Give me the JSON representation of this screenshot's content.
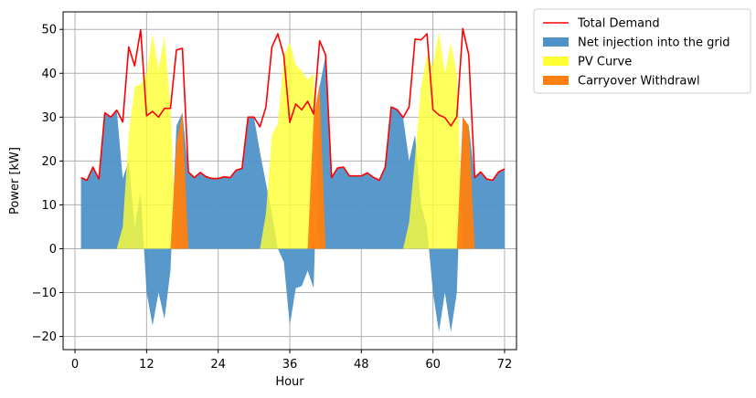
{
  "chart_data": {
    "type": "area",
    "xlabel": "Hour",
    "ylabel": "Power [kW]",
    "xlim": [
      -2,
      74
    ],
    "ylim": [
      -23,
      54
    ],
    "xticks": [
      0,
      12,
      24,
      36,
      48,
      60,
      72
    ],
    "yticks": [
      -20,
      -10,
      0,
      10,
      20,
      30,
      40,
      50
    ],
    "grid": true,
    "legend_position": "outside-top-right",
    "x": [
      1,
      2,
      3,
      4,
      5,
      6,
      7,
      8,
      9,
      10,
      11,
      12,
      13,
      14,
      15,
      16,
      17,
      18,
      19,
      20,
      21,
      22,
      23,
      24,
      25,
      26,
      27,
      28,
      29,
      30,
      31,
      32,
      33,
      34,
      35,
      36,
      37,
      38,
      39,
      40,
      41,
      42,
      43,
      44,
      45,
      46,
      47,
      48,
      49,
      50,
      51,
      52,
      53,
      54,
      55,
      56,
      57,
      58,
      59,
      60,
      61,
      62,
      63,
      64,
      65,
      66,
      67,
      68,
      69,
      70,
      71,
      72
    ],
    "series": [
      {
        "name": "Total Demand",
        "kind": "line",
        "color": "#ff0000",
        "values": [
          16.2,
          15.6,
          18.6,
          15.9,
          31.0,
          30.0,
          31.6,
          28.9,
          46.0,
          41.7,
          49.9,
          30.3,
          31.3,
          30.0,
          32.0,
          32.0,
          45.3,
          45.7,
          17.5,
          16.2,
          17.4,
          16.4,
          16.0,
          16.0,
          16.4,
          16.2,
          17.9,
          18.3,
          30.0,
          30.0,
          27.8,
          32.3,
          46.0,
          49.0,
          44.0,
          28.8,
          33.0,
          31.7,
          33.6,
          30.7,
          47.4,
          44.2,
          16.2,
          18.4,
          18.6,
          16.6,
          16.6,
          16.6,
          17.3,
          16.3,
          15.6,
          18.6,
          32.3,
          31.7,
          29.9,
          32.3,
          47.8,
          47.6,
          49.0,
          31.7,
          30.5,
          29.9,
          28.0,
          30.1,
          50.2,
          44.2,
          16.2,
          17.5,
          15.9,
          15.6,
          17.5,
          18.2
        ]
      },
      {
        "name": "Net injection into the grid",
        "kind": "area",
        "color": "#4f92c8",
        "values": [
          16.2,
          15.6,
          18.6,
          15.9,
          31.0,
          30.0,
          31.6,
          16.0,
          20.0,
          5.0,
          13.0,
          -10.0,
          -17.5,
          -10.0,
          -16.0,
          -5.0,
          28.0,
          31.0,
          17.5,
          16.2,
          17.4,
          16.4,
          16.0,
          16.0,
          16.4,
          16.2,
          17.9,
          18.3,
          30.0,
          30.0,
          22.0,
          15.0,
          8.0,
          0.0,
          -3.0,
          -17.5,
          -9.0,
          -8.5,
          -5.0,
          -9.0,
          37.0,
          44.0,
          16.2,
          18.4,
          18.6,
          16.6,
          16.6,
          16.6,
          17.3,
          16.3,
          15.6,
          18.6,
          32.3,
          31.7,
          29.9,
          20.0,
          26.0,
          10.0,
          5.0,
          -10.0,
          -19.0,
          -10.0,
          -19.0,
          -10.0,
          30.0,
          28.0,
          16.2,
          17.5,
          15.9,
          15.6,
          17.5,
          18.2
        ]
      },
      {
        "name": "PV Curve",
        "kind": "area",
        "color": "#ffff33",
        "values": [
          0,
          0,
          0,
          0,
          0,
          0,
          0,
          5.0,
          26.0,
          37.0,
          37.5,
          40.0,
          49.0,
          41.0,
          48.5,
          32.0,
          0,
          0,
          0,
          0,
          0,
          0,
          0,
          0,
          0,
          0,
          0,
          0,
          0,
          0,
          0,
          8.0,
          26.0,
          28.5,
          44.0,
          47.0,
          42.0,
          40.5,
          38.5,
          40.0,
          0,
          0,
          0,
          0,
          0,
          0,
          0,
          0,
          0,
          0,
          0,
          0,
          0,
          0,
          0,
          6.0,
          21.0,
          37.0,
          44.0,
          41.7,
          49.5,
          40.0,
          47.0,
          40.0,
          0,
          0,
          0,
          0,
          0,
          0,
          0,
          0
        ]
      },
      {
        "name": "Carryover Withdrawl",
        "kind": "area",
        "color": "#ff7f0e",
        "values": [
          0,
          0,
          0,
          0,
          0,
          0,
          0,
          0,
          0,
          0,
          0,
          0,
          0,
          0,
          0,
          0,
          24.0,
          31.0,
          0,
          0,
          0,
          0,
          0,
          0,
          0,
          0,
          0,
          0,
          0,
          0,
          0,
          0,
          0,
          0,
          0,
          0,
          0,
          0,
          0,
          30.0,
          37.5,
          0,
          0,
          0,
          0,
          0,
          0,
          0,
          0,
          0,
          0,
          0,
          0,
          0,
          0,
          0,
          0,
          0,
          0,
          0,
          0,
          0,
          0,
          0,
          30.0,
          28.0,
          0,
          0,
          0,
          0,
          0,
          0
        ]
      }
    ],
    "legend": [
      {
        "label": "Total Demand",
        "kind": "line",
        "color": "#ff0000"
      },
      {
        "label": "Net injection into the grid",
        "kind": "patch",
        "color": "#4f92c8"
      },
      {
        "label": "PV Curve",
        "kind": "patch",
        "color": "#ffff33"
      },
      {
        "label": "Carryover Withdrawl",
        "kind": "patch",
        "color": "#ff7f0e"
      }
    ]
  }
}
